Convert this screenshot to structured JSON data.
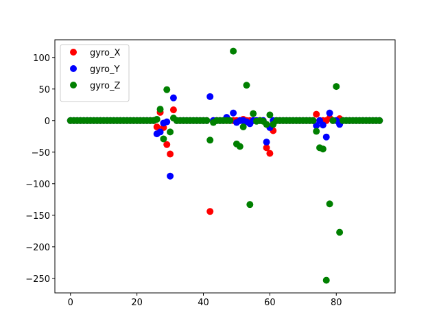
{
  "chart_data": {
    "type": "scatter",
    "title": "",
    "xlabel": "",
    "ylabel": "",
    "xlim": [
      -4.7,
      97.7
    ],
    "ylim": [
      -273,
      128
    ],
    "xticks": [
      0,
      20,
      40,
      60,
      80
    ],
    "yticks": [
      -250,
      -200,
      -150,
      -100,
      -50,
      0,
      50,
      100
    ],
    "xtick_labels": [
      "0",
      "20",
      "40",
      "60",
      "80"
    ],
    "ytick_labels": [
      "−250",
      "−200",
      "−150",
      "−100",
      "−50",
      "0",
      "50",
      "100"
    ],
    "grid": false,
    "legend_position": "top-left",
    "x": [
      0,
      1,
      2,
      3,
      4,
      5,
      6,
      7,
      8,
      9,
      10,
      11,
      12,
      13,
      14,
      15,
      16,
      17,
      18,
      19,
      20,
      21,
      22,
      23,
      24,
      25,
      26,
      27,
      28,
      29,
      30,
      31,
      32,
      33,
      34,
      35,
      36,
      37,
      38,
      39,
      40,
      41,
      42,
      43,
      44,
      45,
      46,
      47,
      48,
      49,
      50,
      51,
      52,
      53,
      54,
      55,
      56,
      57,
      58,
      59,
      60,
      61,
      62,
      63,
      64,
      65,
      66,
      67,
      68,
      69,
      70,
      71,
      72,
      73,
      74,
      75,
      76,
      77,
      78,
      79,
      80,
      81,
      82,
      83,
      84,
      85,
      86,
      87,
      88,
      89,
      90,
      91,
      92,
      93
    ],
    "series": [
      {
        "name": "gyro_X",
        "color": "#ff0000",
        "values": [
          0,
          0,
          0,
          0,
          0,
          0,
          0,
          0,
          0,
          0,
          0,
          0,
          0,
          0,
          0,
          0,
          0,
          0,
          0,
          0,
          0,
          0,
          0,
          0,
          0,
          0,
          -10,
          13,
          -11,
          -38,
          -53,
          17,
          0,
          0,
          0,
          0,
          0,
          0,
          0,
          0,
          0,
          0,
          -144,
          0,
          0,
          0,
          0,
          0,
          0,
          0,
          0,
          0,
          2,
          0,
          0,
          0,
          0,
          0,
          0,
          -43,
          -52,
          -16,
          0,
          0,
          0,
          0,
          0,
          0,
          0,
          0,
          0,
          0,
          0,
          0,
          10,
          0,
          0,
          0,
          4,
          0,
          0,
          3,
          0,
          0,
          0,
          0,
          0,
          0,
          0,
          0,
          0,
          0,
          0,
          0
        ]
      },
      {
        "name": "gyro_Y",
        "color": "#0000ff",
        "values": [
          0,
          0,
          0,
          0,
          0,
          0,
          0,
          0,
          0,
          0,
          0,
          0,
          0,
          0,
          0,
          0,
          0,
          0,
          0,
          0,
          0,
          0,
          0,
          0,
          0,
          0,
          -21,
          -18,
          -4,
          -2,
          -88,
          36,
          0,
          0,
          0,
          0,
          0,
          0,
          0,
          0,
          0,
          0,
          38,
          0,
          0,
          0,
          0,
          5,
          0,
          12,
          -3,
          0,
          0,
          -2,
          -5,
          0,
          0,
          0,
          0,
          -34,
          -11,
          0,
          0,
          0,
          0,
          0,
          0,
          0,
          0,
          0,
          0,
          0,
          0,
          0,
          -8,
          0,
          -7,
          -26,
          12,
          0,
          0,
          -6,
          0,
          0,
          0,
          0,
          0,
          0,
          0,
          0,
          0,
          0,
          0,
          0
        ]
      },
      {
        "name": "gyro_Z",
        "color": "#008000",
        "values": [
          0,
          0,
          0,
          0,
          0,
          0,
          0,
          0,
          0,
          0,
          0,
          0,
          0,
          0,
          0,
          0,
          0,
          0,
          0,
          0,
          0,
          0,
          0,
          0,
          0,
          0,
          2,
          18,
          -29,
          49,
          -18,
          4,
          0,
          0,
          0,
          0,
          0,
          0,
          0,
          0,
          0,
          0,
          -31,
          -3,
          0,
          0,
          0,
          0,
          0,
          110,
          -37,
          -41,
          -10,
          56,
          -133,
          11,
          -1,
          0,
          -1,
          -6,
          9,
          -6,
          0,
          0,
          0,
          0,
          0,
          0,
          0,
          0,
          0,
          0,
          0,
          0,
          -17,
          -43,
          -45,
          -253,
          -132,
          0,
          54,
          -177,
          0,
          0,
          0,
          0,
          0,
          0,
          0,
          0,
          0,
          0,
          0,
          0
        ]
      }
    ]
  }
}
